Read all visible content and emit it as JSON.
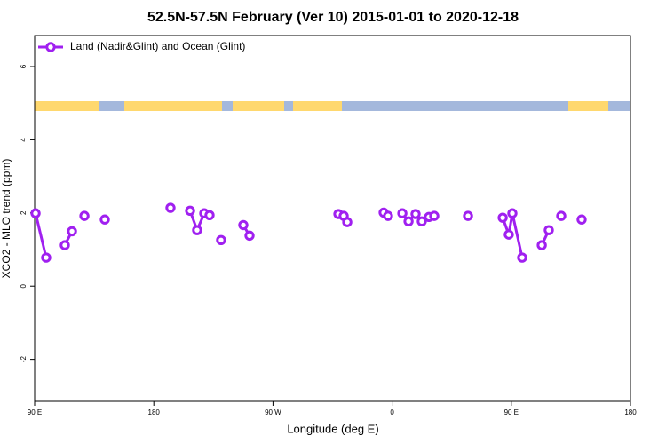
{
  "chart_data": {
    "type": "line",
    "title": "52.5N-57.5N February (Ver 10)   2015-01-01 to 2020-12-18",
    "x_label": "Longitude (deg E)",
    "y_label": "XCO2 - MLO trend (ppm)",
    "legend_position": "top-left",
    "xlim": [
      90,
      540
    ],
    "ylim": [
      -3.15,
      6.85
    ],
    "xticks": [
      {
        "value": 90,
        "label": "90 E"
      },
      180,
      {
        "value": 270,
        "label": "90 W"
      },
      {
        "value": 360,
        "label": "0"
      },
      {
        "value": 450,
        "label": "90 E"
      },
      {
        "value": 540,
        "label": "180"
      }
    ],
    "yticks": [
      -2,
      0,
      2,
      4,
      6
    ],
    "x": [
      90.7,
      98.7,
      null,
      112.8,
      118.2,
      null,
      127.6,
      null,
      143,
      null,
      192.6,
      null,
      207.4,
      212.7,
      218.1,
      222.1,
      null,
      230.8,
      null,
      247.6,
      252.3,
      null,
      319.4,
      323.4,
      326.1,
      null,
      353.6,
      356.9,
      null,
      367.7,
      372.4,
      377.7,
      382.4,
      387.8,
      391.8,
      null,
      417.3,
      null,
      443.5,
      448.1,
      450.8,
      458.2,
      null,
      473,
      478.3,
      null,
      487.7,
      null,
      503.1
    ],
    "series": [
      {
        "name": "Land (Nadir&Glint) and Ocean (Glint)",
        "color": "#a020f0",
        "values": [
          1.99,
          0.78,
          null,
          1.12,
          1.5,
          null,
          1.92,
          null,
          1.82,
          null,
          2.14,
          null,
          2.06,
          1.53,
          1.99,
          1.94,
          null,
          1.26,
          null,
          1.67,
          1.38,
          null,
          1.97,
          1.92,
          1.75,
          null,
          2.01,
          1.92,
          null,
          1.99,
          1.77,
          1.97,
          1.77,
          1.89,
          1.92,
          null,
          1.92,
          null,
          1.87,
          1.41,
          1.99,
          0.78,
          null,
          1.12,
          1.53,
          null,
          1.92,
          null,
          1.82
        ]
      }
    ]
  }
}
